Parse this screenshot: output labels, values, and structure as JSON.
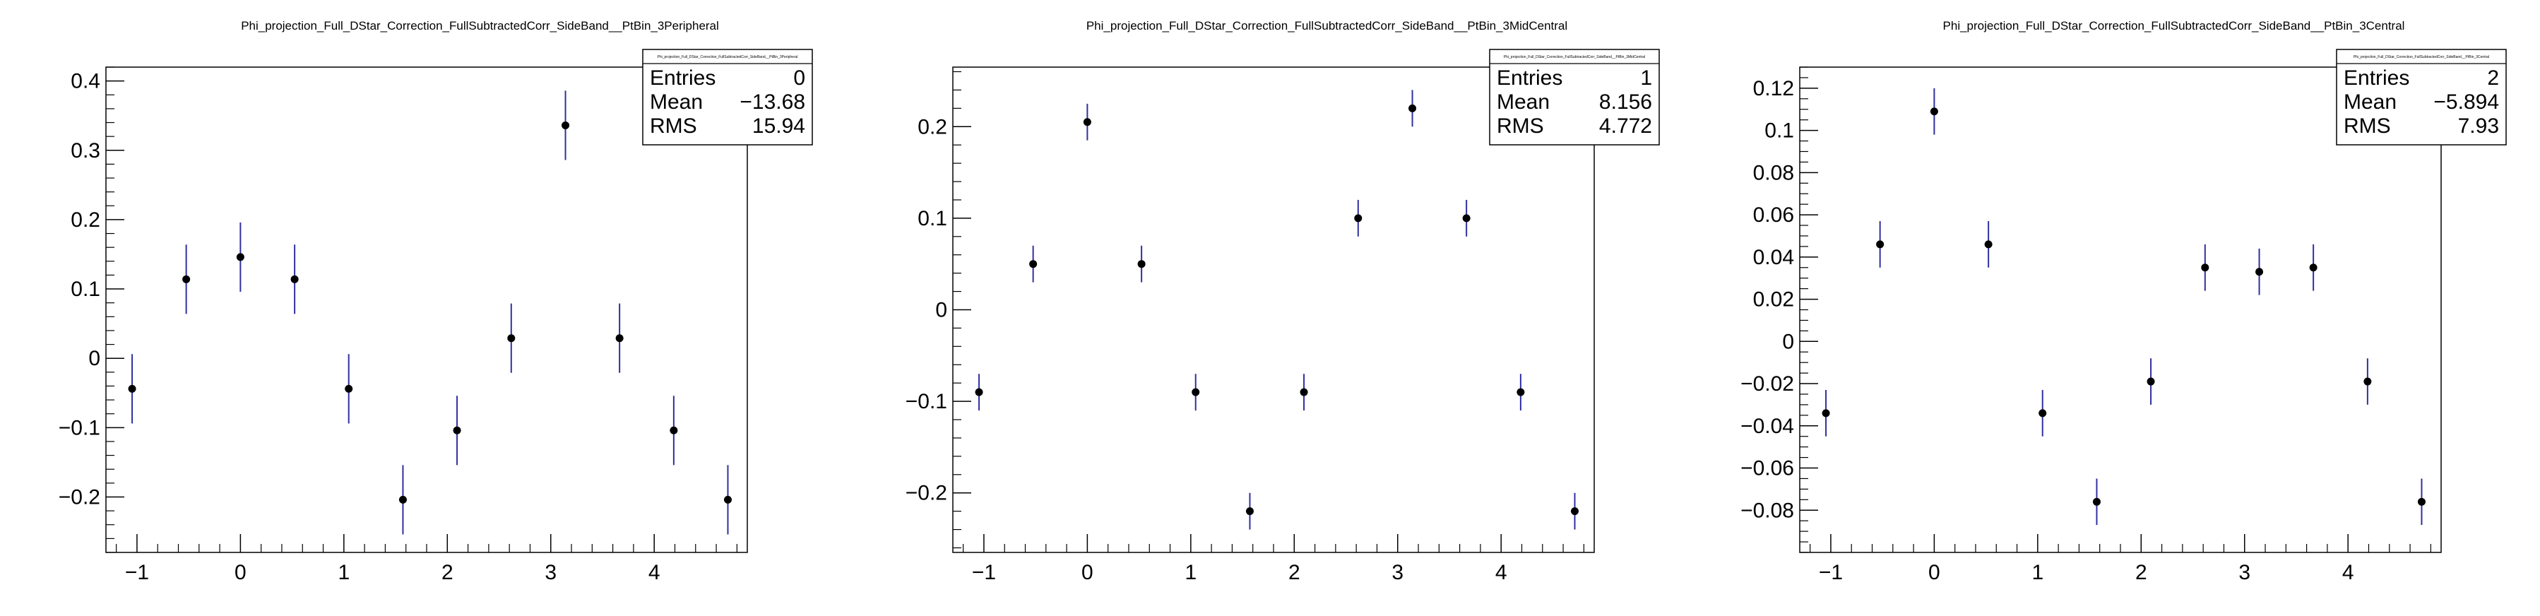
{
  "colors": {
    "marker": "#000000",
    "errorbar": "#3030a0",
    "frame": "#000000",
    "background": "#ffffff"
  },
  "chart_data": [
    {
      "type": "scatter",
      "title": "Phi_projection_Full_DStar_Correction_FullSubtractedCorr_SideBand__PtBin_3Peripheral",
      "stats_header": "Phi_projection_Full_DStar_Correction_FullSubtractedCorr_SideBand__PtBin_3Peripheral",
      "stats": [
        {
          "label": "Entries",
          "value": "0"
        },
        {
          "label": "Mean",
          "value": "−13.68"
        },
        {
          "label": "RMS",
          "value": "15.94"
        }
      ],
      "xlim": [
        -1.3,
        4.9
      ],
      "ylim": [
        -0.28,
        0.42
      ],
      "x_ticks": [
        -1,
        0,
        1,
        2,
        3,
        4
      ],
      "x_tick_labels": [
        "−1",
        "0",
        "1",
        "2",
        "3",
        "4"
      ],
      "y_ticks": [
        -0.2,
        -0.1,
        0,
        0.1,
        0.2,
        0.3,
        0.4
      ],
      "y_tick_labels": [
        "−0.2",
        "−0.1",
        "0",
        "0.1",
        "0.2",
        "0.3",
        "0.4"
      ],
      "y_minor_step": 0.02,
      "x_minor_step": 0.2,
      "points": [
        {
          "x": -1.047,
          "y": -0.044,
          "err": 0.05
        },
        {
          "x": -0.524,
          "y": 0.114,
          "err": 0.05
        },
        {
          "x": 0.0,
          "y": 0.146,
          "err": 0.05
        },
        {
          "x": 0.524,
          "y": 0.114,
          "err": 0.05
        },
        {
          "x": 1.047,
          "y": -0.044,
          "err": 0.05
        },
        {
          "x": 1.571,
          "y": -0.204,
          "err": 0.05
        },
        {
          "x": 2.094,
          "y": -0.104,
          "err": 0.05
        },
        {
          "x": 2.618,
          "y": 0.029,
          "err": 0.05
        },
        {
          "x": 3.142,
          "y": 0.336,
          "err": 0.05
        },
        {
          "x": 3.665,
          "y": 0.029,
          "err": 0.05
        },
        {
          "x": 4.189,
          "y": -0.104,
          "err": 0.05
        },
        {
          "x": 4.712,
          "y": -0.204,
          "err": 0.05
        }
      ]
    },
    {
      "type": "scatter",
      "title": "Phi_projection_Full_DStar_Correction_FullSubtractedCorr_SideBand__PtBin_3MidCentral",
      "stats_header": "Phi_projection_Full_DStar_Correction_FullSubtractedCorr_SideBand__PtBin_3MidCentral",
      "stats": [
        {
          "label": "Entries",
          "value": "1"
        },
        {
          "label": "Mean",
          "value": "8.156"
        },
        {
          "label": "RMS",
          "value": "4.772"
        }
      ],
      "xlim": [
        -1.3,
        4.9
      ],
      "ylim": [
        -0.265,
        0.265
      ],
      "x_ticks": [
        -1,
        0,
        1,
        2,
        3,
        4
      ],
      "x_tick_labels": [
        "−1",
        "0",
        "1",
        "2",
        "3",
        "4"
      ],
      "y_ticks": [
        -0.2,
        -0.1,
        0,
        0.1,
        0.2
      ],
      "y_tick_labels": [
        "−0.2",
        "−0.1",
        "0",
        "0.1",
        "0.2"
      ],
      "y_minor_step": 0.02,
      "x_minor_step": 0.2,
      "points": [
        {
          "x": -1.047,
          "y": -0.09,
          "err": 0.02
        },
        {
          "x": -0.524,
          "y": 0.05,
          "err": 0.02
        },
        {
          "x": 0.0,
          "y": 0.205,
          "err": 0.02
        },
        {
          "x": 0.524,
          "y": 0.05,
          "err": 0.02
        },
        {
          "x": 1.047,
          "y": -0.09,
          "err": 0.02
        },
        {
          "x": 1.571,
          "y": -0.22,
          "err": 0.02
        },
        {
          "x": 2.094,
          "y": -0.09,
          "err": 0.02
        },
        {
          "x": 2.618,
          "y": 0.1,
          "err": 0.02
        },
        {
          "x": 3.142,
          "y": 0.22,
          "err": 0.02
        },
        {
          "x": 3.665,
          "y": 0.1,
          "err": 0.02
        },
        {
          "x": 4.189,
          "y": -0.09,
          "err": 0.02
        },
        {
          "x": 4.712,
          "y": -0.22,
          "err": 0.02
        }
      ]
    },
    {
      "type": "scatter",
      "title": "Phi_projection_Full_DStar_Correction_FullSubtractedCorr_SideBand__PtBin_3Central",
      "stats_header": "Phi_projection_Full_DStar_Correction_FullSubtractedCorr_SideBand__PtBin_3Central",
      "stats": [
        {
          "label": "Entries",
          "value": "2"
        },
        {
          "label": "Mean",
          "value": "−5.894"
        },
        {
          "label": "RMS",
          "value": "7.93"
        }
      ],
      "xlim": [
        -1.3,
        4.9
      ],
      "ylim": [
        -0.1,
        0.13
      ],
      "x_ticks": [
        -1,
        0,
        1,
        2,
        3,
        4
      ],
      "x_tick_labels": [
        "−1",
        "0",
        "1",
        "2",
        "3",
        "4"
      ],
      "y_ticks": [
        -0.08,
        -0.06,
        -0.04,
        -0.02,
        0,
        0.02,
        0.04,
        0.06,
        0.08,
        0.1,
        0.12
      ],
      "y_tick_labels": [
        "−0.08",
        "−0.06",
        "−0.04",
        "−0.02",
        "0",
        "0.02",
        "0.04",
        "0.06",
        "0.08",
        "0.1",
        "0.12"
      ],
      "y_minor_step": 0.005,
      "x_minor_step": 0.2,
      "points": [
        {
          "x": -1.047,
          "y": -0.034,
          "err": 0.011
        },
        {
          "x": -0.524,
          "y": 0.046,
          "err": 0.011
        },
        {
          "x": 0.0,
          "y": 0.109,
          "err": 0.011
        },
        {
          "x": 0.524,
          "y": 0.046,
          "err": 0.011
        },
        {
          "x": 1.047,
          "y": -0.034,
          "err": 0.011
        },
        {
          "x": 1.571,
          "y": -0.076,
          "err": 0.011
        },
        {
          "x": 2.094,
          "y": -0.019,
          "err": 0.011
        },
        {
          "x": 2.618,
          "y": 0.035,
          "err": 0.011
        },
        {
          "x": 3.142,
          "y": 0.033,
          "err": 0.011
        },
        {
          "x": 3.665,
          "y": 0.035,
          "err": 0.011
        },
        {
          "x": 4.189,
          "y": -0.019,
          "err": 0.011
        },
        {
          "x": 4.712,
          "y": -0.076,
          "err": 0.011
        }
      ]
    }
  ]
}
